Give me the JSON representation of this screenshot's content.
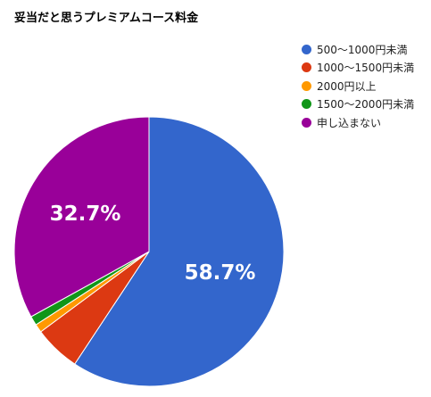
{
  "chart_data": {
    "type": "pie",
    "title": "妥当だと思うプレミアムコース料金",
    "slices": [
      {
        "name": "500〜1000円未満",
        "value": 58.7,
        "color": "#3366cc",
        "label": "58.7%"
      },
      {
        "name": "1000〜1500円未満",
        "value": 5.5,
        "color": "#dc3912",
        "label": ""
      },
      {
        "name": "2000円以上",
        "value": 1.0,
        "color": "#ff9900",
        "label": ""
      },
      {
        "name": "1500〜2000円未満",
        "value": 1.1,
        "color": "#109618",
        "label": ""
      },
      {
        "name": "申し込まない",
        "value": 32.7,
        "color": "#990099",
        "label": "32.7%"
      }
    ],
    "legend_position": "right",
    "start_angle_deg": 0,
    "direction": "clockwise"
  }
}
